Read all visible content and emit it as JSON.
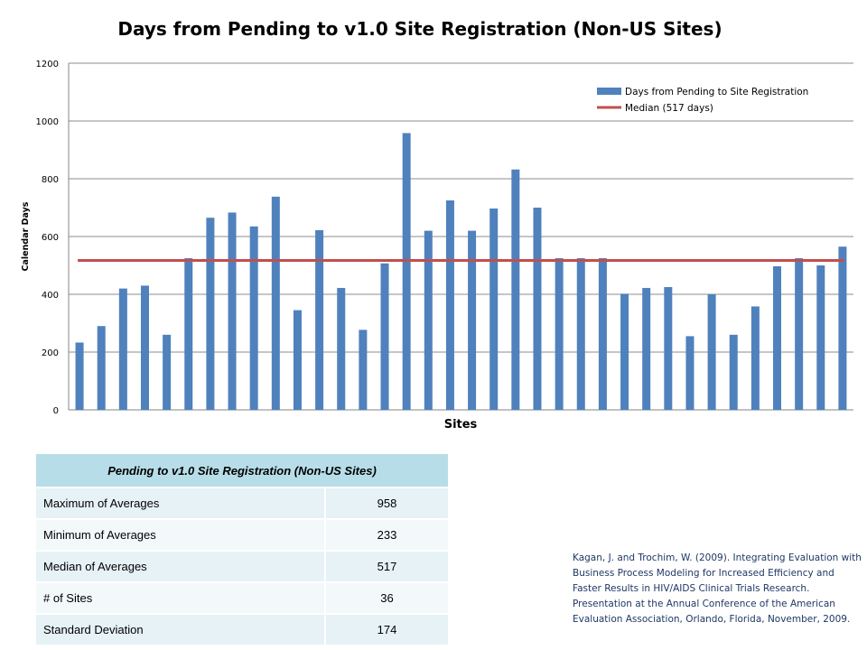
{
  "chart_data": {
    "type": "bar",
    "title": "Days from Pending to v1.0 Site Registration (Non-US Sites)",
    "xlabel": "Sites",
    "ylabel": "Calendar Days",
    "ylim": [
      0,
      1200
    ],
    "yticks": [
      0,
      200,
      400,
      600,
      800,
      1000,
      1200
    ],
    "grid": true,
    "legend_position": "top-right",
    "series": [
      {
        "name": "Days from Pending to Site Registration",
        "kind": "bar",
        "color": "#4f81bd",
        "values": [
          233,
          290,
          420,
          430,
          260,
          525,
          665,
          683,
          635,
          738,
          345,
          622,
          422,
          277,
          507,
          958,
          620,
          725,
          620,
          697,
          832,
          700,
          525,
          525,
          525,
          402,
          422,
          425,
          255,
          400,
          260,
          358,
          497,
          525,
          500,
          565
        ]
      },
      {
        "name": "Median (517 days)",
        "kind": "line",
        "color": "#c0504d",
        "value": 517
      }
    ]
  },
  "table": {
    "header": "Pending to v1.0 Site Registration (Non-US Sites)",
    "rows": [
      {
        "label": "Maximum of Averages",
        "value": "958"
      },
      {
        "label": "Minimum of Averages",
        "value": "233"
      },
      {
        "label": "Median of Averages",
        "value": "517"
      },
      {
        "label": "# of Sites",
        "value": "36"
      },
      {
        "label": "Standard Deviation",
        "value": "174"
      }
    ]
  },
  "citation": "Kagan, J. and Trochim, W. (2009). Integrating Evaluation with Business Process Modeling for Increased Efficiency and Faster Results in HIV/AIDS Clinical Trials Research. Presentation at the Annual Conference of the American Evaluation Association, Orlando, Florida, November, 2009."
}
